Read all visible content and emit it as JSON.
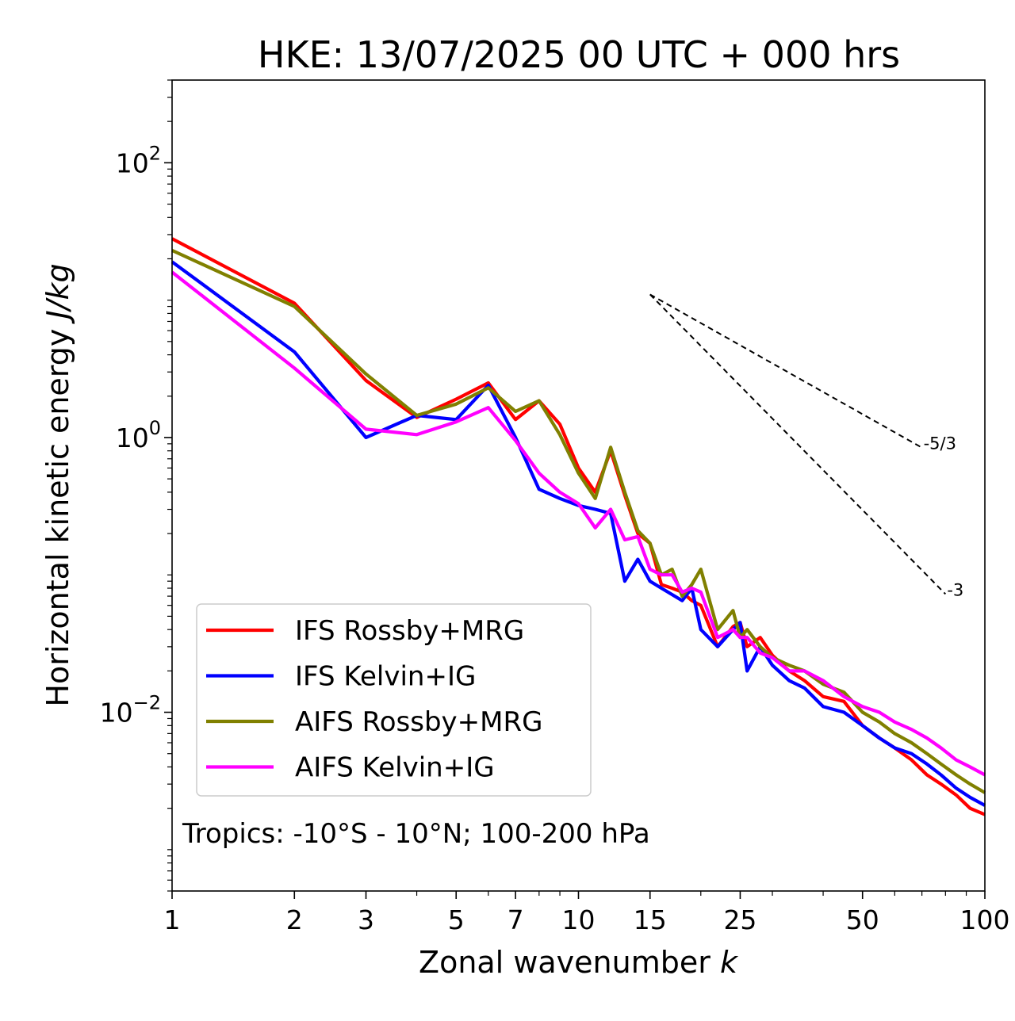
{
  "chart_data": {
    "type": "line",
    "title": "HKE: 13/07/2025 00 UTC + 000 hrs",
    "xlabel": "Zonal wavenumber k",
    "ylabel": "Horizontal kinetic energy J/kg",
    "xscale": "log",
    "yscale": "log",
    "xlim": [
      1,
      100
    ],
    "ylim": [
      0.0005,
      400
    ],
    "x_ticks": [
      1,
      2,
      3,
      5,
      7,
      10,
      15,
      25,
      50,
      100
    ],
    "x_tick_labels": [
      "1",
      "2",
      "3",
      "5",
      "7",
      "10",
      "15",
      "25",
      "50",
      "100"
    ],
    "y_ticks": [
      {
        "value": 100,
        "base": "10",
        "exp": "2"
      },
      {
        "value": 1,
        "base": "10",
        "exp": "0"
      },
      {
        "value": 0.01,
        "base": "10",
        "exp": "−2"
      }
    ],
    "annotation": "Tropics: -10°S - 10°N; 100-200 hPa",
    "legend_position": "lower-left",
    "reference_lines": [
      {
        "label": "-5/3",
        "slope": -1.6667,
        "x0": 15,
        "y0": 11,
        "x1": 70
      },
      {
        "label": "-3",
        "slope": -3,
        "x0": 15,
        "y0": 11,
        "x1": 80
      }
    ],
    "series": [
      {
        "name": "IFS Rossby+MRG",
        "color": "#ff0000",
        "points": [
          [
            1,
            28
          ],
          [
            2,
            9.5
          ],
          [
            3,
            2.6
          ],
          [
            4,
            1.4
          ],
          [
            5,
            1.9
          ],
          [
            6,
            2.5
          ],
          [
            7,
            1.35
          ],
          [
            8,
            1.85
          ],
          [
            9,
            1.25
          ],
          [
            10,
            0.6
          ],
          [
            11,
            0.4
          ],
          [
            12,
            0.8
          ],
          [
            13,
            0.38
          ],
          [
            14,
            0.2
          ],
          [
            15,
            0.17
          ],
          [
            16,
            0.085
          ],
          [
            17,
            0.08
          ],
          [
            18,
            0.075
          ],
          [
            19,
            0.065
          ],
          [
            20,
            0.06
          ],
          [
            22,
            0.03
          ],
          [
            24,
            0.042
          ],
          [
            25,
            0.045
          ],
          [
            26,
            0.03
          ],
          [
            28,
            0.035
          ],
          [
            30,
            0.026
          ],
          [
            33,
            0.02
          ],
          [
            36,
            0.017
          ],
          [
            40,
            0.013
          ],
          [
            45,
            0.012
          ],
          [
            50,
            0.008
          ],
          [
            55,
            0.0065
          ],
          [
            60,
            0.0055
          ],
          [
            66,
            0.0045
          ],
          [
            72,
            0.0035
          ],
          [
            78,
            0.003
          ],
          [
            85,
            0.0025
          ],
          [
            92,
            0.002
          ],
          [
            100,
            0.0018
          ]
        ]
      },
      {
        "name": "IFS Kelvin+IG",
        "color": "#0000ff",
        "points": [
          [
            1,
            19
          ],
          [
            2,
            4.2
          ],
          [
            3,
            1.0
          ],
          [
            4,
            1.45
          ],
          [
            5,
            1.35
          ],
          [
            6,
            2.4
          ],
          [
            7,
            1.0
          ],
          [
            8,
            0.42
          ],
          [
            9,
            0.36
          ],
          [
            10,
            0.32
          ],
          [
            11,
            0.3
          ],
          [
            12,
            0.28
          ],
          [
            13,
            0.09
          ],
          [
            14,
            0.13
          ],
          [
            15,
            0.09
          ],
          [
            16,
            0.08
          ],
          [
            18,
            0.065
          ],
          [
            19,
            0.08
          ],
          [
            20,
            0.04
          ],
          [
            22,
            0.03
          ],
          [
            24,
            0.04
          ],
          [
            25,
            0.045
          ],
          [
            26,
            0.02
          ],
          [
            28,
            0.03
          ],
          [
            30,
            0.022
          ],
          [
            33,
            0.017
          ],
          [
            36,
            0.015
          ],
          [
            40,
            0.011
          ],
          [
            45,
            0.01
          ],
          [
            50,
            0.008
          ],
          [
            55,
            0.0065
          ],
          [
            60,
            0.0055
          ],
          [
            66,
            0.005
          ],
          [
            72,
            0.0042
          ],
          [
            78,
            0.0035
          ],
          [
            85,
            0.0028
          ],
          [
            92,
            0.0024
          ],
          [
            100,
            0.0021
          ]
        ]
      },
      {
        "name": "AIFS Rossby+MRG",
        "color": "#808000",
        "points": [
          [
            1,
            23
          ],
          [
            2,
            9.0
          ],
          [
            3,
            2.9
          ],
          [
            4,
            1.45
          ],
          [
            5,
            1.75
          ],
          [
            6,
            2.3
          ],
          [
            7,
            1.55
          ],
          [
            8,
            1.85
          ],
          [
            9,
            1.05
          ],
          [
            10,
            0.55
          ],
          [
            11,
            0.36
          ],
          [
            12,
            0.85
          ],
          [
            13,
            0.4
          ],
          [
            14,
            0.21
          ],
          [
            15,
            0.17
          ],
          [
            16,
            0.1
          ],
          [
            17,
            0.11
          ],
          [
            18,
            0.07
          ],
          [
            19,
            0.085
          ],
          [
            20,
            0.11
          ],
          [
            22,
            0.04
          ],
          [
            24,
            0.055
          ],
          [
            25,
            0.035
          ],
          [
            26,
            0.04
          ],
          [
            28,
            0.03
          ],
          [
            30,
            0.025
          ],
          [
            33,
            0.022
          ],
          [
            36,
            0.02
          ],
          [
            40,
            0.016
          ],
          [
            45,
            0.014
          ],
          [
            50,
            0.01
          ],
          [
            55,
            0.0085
          ],
          [
            60,
            0.007
          ],
          [
            66,
            0.006
          ],
          [
            72,
            0.005
          ],
          [
            78,
            0.0042
          ],
          [
            85,
            0.0035
          ],
          [
            92,
            0.003
          ],
          [
            100,
            0.0026
          ]
        ]
      },
      {
        "name": "AIFS Kelvin+IG",
        "color": "#ff00ff",
        "points": [
          [
            1,
            16
          ],
          [
            2,
            3.2
          ],
          [
            3,
            1.15
          ],
          [
            4,
            1.05
          ],
          [
            5,
            1.3
          ],
          [
            6,
            1.65
          ],
          [
            7,
            0.95
          ],
          [
            8,
            0.55
          ],
          [
            9,
            0.4
          ],
          [
            10,
            0.33
          ],
          [
            11,
            0.22
          ],
          [
            12,
            0.3
          ],
          [
            13,
            0.18
          ],
          [
            14,
            0.19
          ],
          [
            15,
            0.11
          ],
          [
            16,
            0.1
          ],
          [
            17,
            0.1
          ],
          [
            18,
            0.075
          ],
          [
            19,
            0.08
          ],
          [
            20,
            0.075
          ],
          [
            22,
            0.035
          ],
          [
            24,
            0.04
          ],
          [
            25,
            0.035
          ],
          [
            26,
            0.035
          ],
          [
            28,
            0.027
          ],
          [
            30,
            0.025
          ],
          [
            33,
            0.02
          ],
          [
            36,
            0.02
          ],
          [
            40,
            0.017
          ],
          [
            45,
            0.013
          ],
          [
            50,
            0.011
          ],
          [
            55,
            0.01
          ],
          [
            60,
            0.0085
          ],
          [
            66,
            0.0075
          ],
          [
            72,
            0.0065
          ],
          [
            78,
            0.0055
          ],
          [
            85,
            0.0045
          ],
          [
            92,
            0.004
          ],
          [
            100,
            0.0035
          ]
        ]
      }
    ]
  }
}
